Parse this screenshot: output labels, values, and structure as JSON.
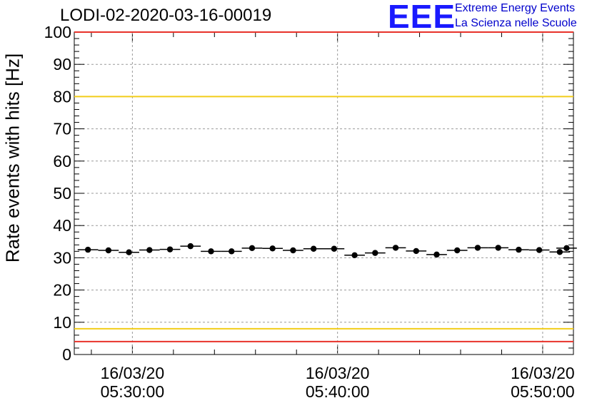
{
  "chart_data": {
    "type": "scatter",
    "title": "LODI-02-2020-03-16-00019",
    "ylabel": "Rate events with hits [Hz]",
    "xlabel": "",
    "ylim": [
      0,
      100
    ],
    "yticks": [
      0,
      10,
      20,
      30,
      40,
      50,
      60,
      70,
      80,
      90,
      100
    ],
    "xlim": [
      "05:27:10",
      "05:51:30"
    ],
    "xtick_labels": [
      {
        "date": "16/03/20",
        "time": "05:30:00"
      },
      {
        "date": "16/03/20",
        "time": "05:40:00"
      },
      {
        "date": "16/03/20",
        "time": "05:50:00"
      }
    ],
    "grid": true,
    "reference_lines": [
      {
        "y": 100,
        "color": "#e8322a"
      },
      {
        "y": 80,
        "color": "#f2cd1a"
      },
      {
        "y": 8,
        "color": "#f2cd1a"
      },
      {
        "y": 4,
        "color": "#e8322a"
      }
    ],
    "series": [
      {
        "x": [
          "05:27:50",
          "05:29:50",
          "05:31:50",
          "05:33:50",
          "05:35:50",
          "05:37:50",
          "05:39:50",
          "05:41:50",
          "05:43:50",
          "05:45:50",
          "05:47:50",
          "05:49:50",
          "05:51:10",
          "05:28:50",
          "05:30:50",
          "05:32:50",
          "05:34:50",
          "05:36:50",
          "05:38:50",
          "05:40:50",
          "05:42:50",
          "05:44:50",
          "05:46:50",
          "05:48:50",
          "05:50:50"
        ],
        "y": [
          32.5,
          31.7,
          32.6,
          32.0,
          33.0,
          32.3,
          32.8,
          31.5,
          32.1,
          32.3,
          33.1,
          32.4,
          33.0,
          32.3,
          32.4,
          33.6,
          32.0,
          32.9,
          32.8,
          30.8,
          33.1,
          31.0,
          33.1,
          32.5,
          31.8
        ]
      }
    ],
    "point_color": "#000000"
  },
  "logo": {
    "mark": "EEE",
    "line1": "Extreme Energy Events",
    "line2": "La Scienza nelle Scuole"
  }
}
